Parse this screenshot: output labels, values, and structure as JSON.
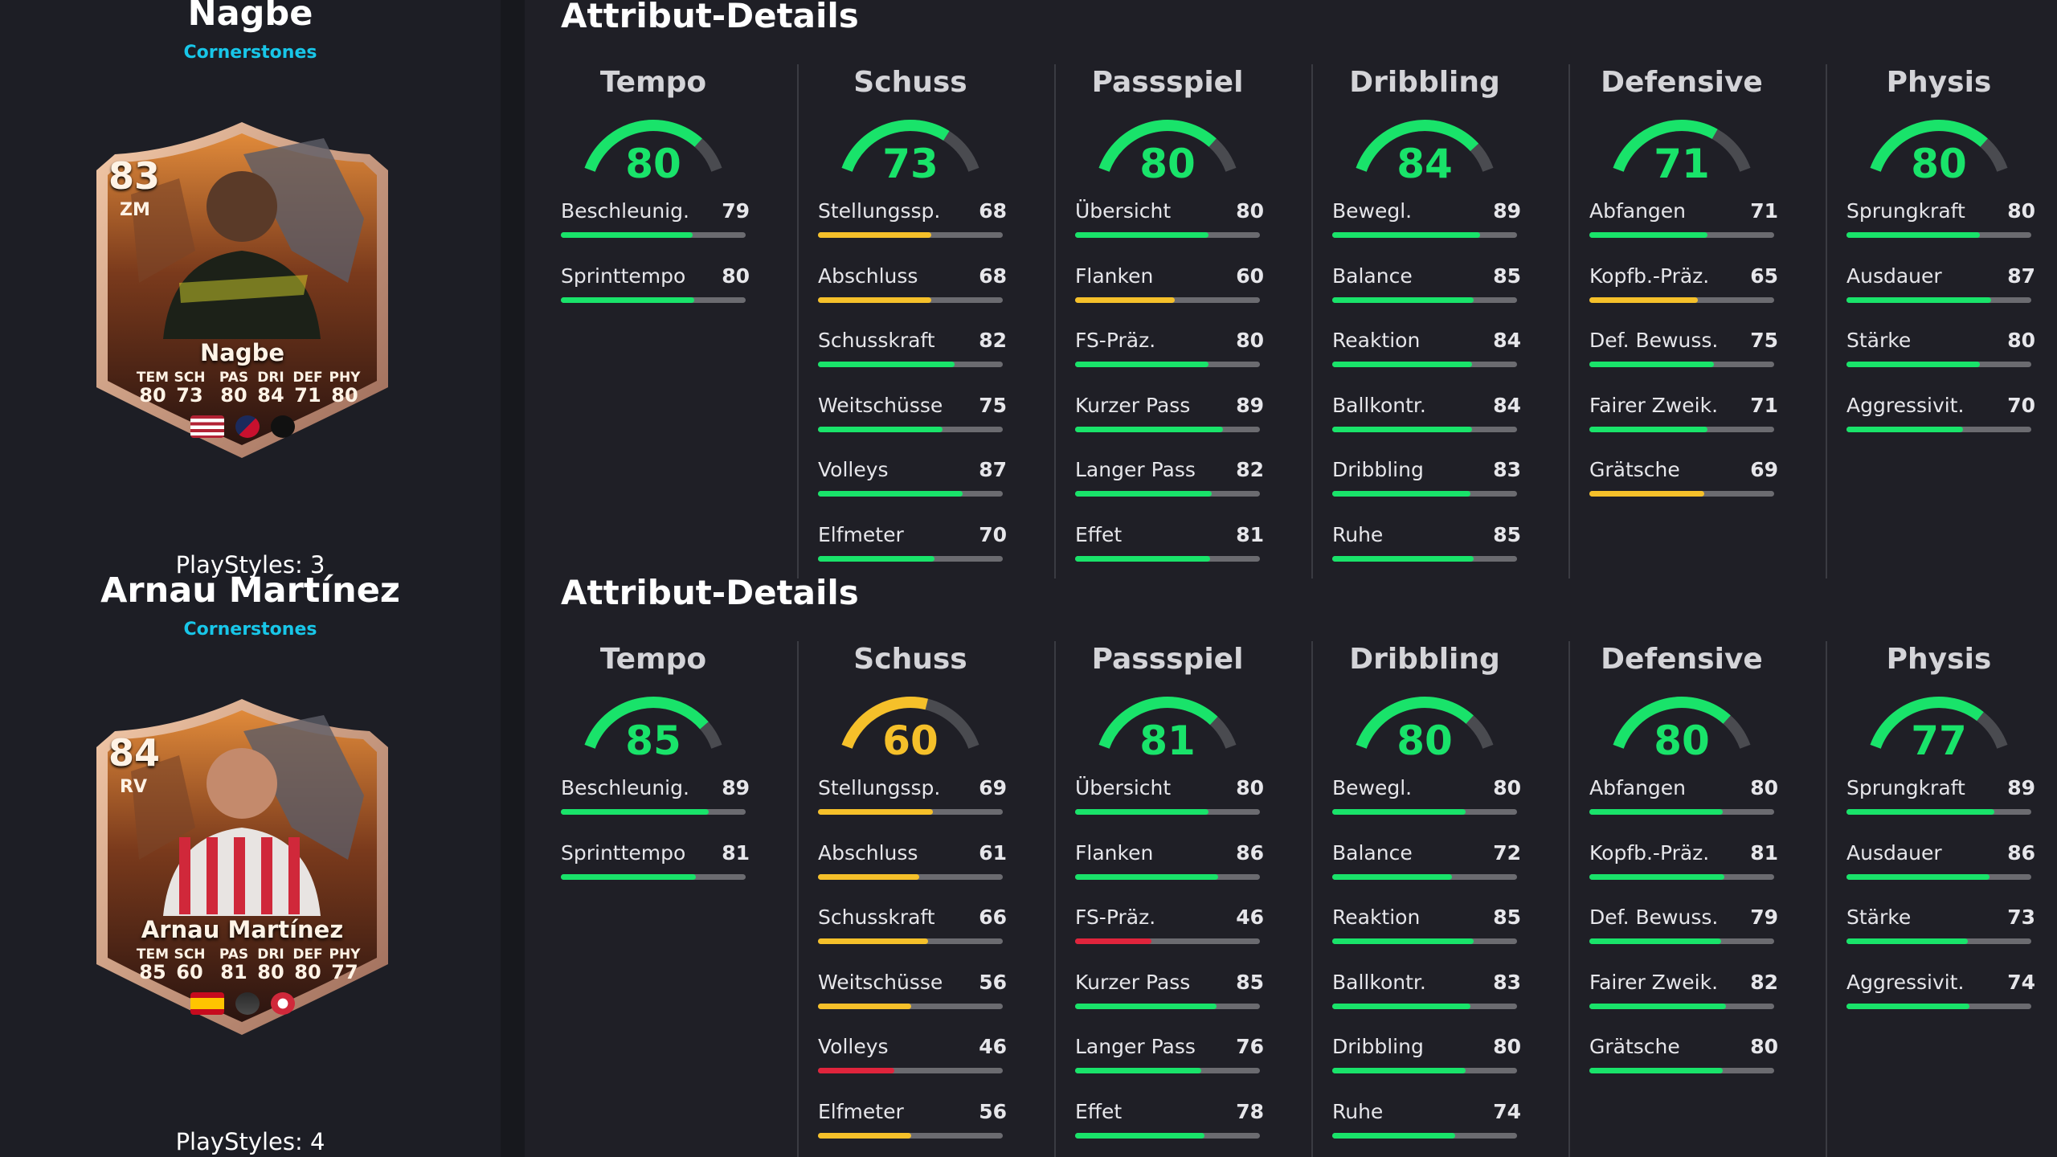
{
  "colors": {
    "green": "#19e36a",
    "yellow": "#f5c02a",
    "red": "#e0243c",
    "track": "#6b6b70",
    "accent": "#18c6e8"
  },
  "players": [
    {
      "name": "Nagbe",
      "team": "Cornerstones",
      "playstyles": "PlayStyles: 3",
      "card": {
        "rating": "83",
        "position": "ZM",
        "name": "Nagbe",
        "stats": [
          {
            "label": "TEM",
            "value": "80"
          },
          {
            "label": "SCH",
            "value": "73"
          },
          {
            "label": "PAS",
            "value": "80"
          },
          {
            "label": "DRI",
            "value": "84"
          },
          {
            "label": "DEF",
            "value": "71"
          },
          {
            "label": "PHY",
            "value": "80"
          }
        ],
        "badges": [
          "usa-flag-icon",
          "mls-logo-icon",
          "columbus-crest-icon"
        ]
      },
      "section_title": "Attribut-Details",
      "categories": [
        {
          "name": "Tempo",
          "value": 80,
          "stats": [
            {
              "label": "Beschleunig.",
              "value": 79
            },
            {
              "label": "Sprinttempo",
              "value": 80
            }
          ]
        },
        {
          "name": "Schuss",
          "value": 73,
          "stats": [
            {
              "label": "Stellungssp.",
              "value": 68
            },
            {
              "label": "Abschluss",
              "value": 68
            },
            {
              "label": "Schusskraft",
              "value": 82
            },
            {
              "label": "Weitschüsse",
              "value": 75
            },
            {
              "label": "Volleys",
              "value": 87
            },
            {
              "label": "Elfmeter",
              "value": 70
            }
          ]
        },
        {
          "name": "Passspiel",
          "value": 80,
          "stats": [
            {
              "label": "Übersicht",
              "value": 80
            },
            {
              "label": "Flanken",
              "value": 60
            },
            {
              "label": "FS-Präz.",
              "value": 80
            },
            {
              "label": "Kurzer Pass",
              "value": 89
            },
            {
              "label": "Langer Pass",
              "value": 82
            },
            {
              "label": "Effet",
              "value": 81
            }
          ]
        },
        {
          "name": "Dribbling",
          "value": 84,
          "stats": [
            {
              "label": "Bewegl.",
              "value": 89
            },
            {
              "label": "Balance",
              "value": 85
            },
            {
              "label": "Reaktion",
              "value": 84
            },
            {
              "label": "Ballkontr.",
              "value": 84
            },
            {
              "label": "Dribbling",
              "value": 83
            },
            {
              "label": "Ruhe",
              "value": 85
            }
          ]
        },
        {
          "name": "Defensive",
          "value": 71,
          "stats": [
            {
              "label": "Abfangen",
              "value": 71
            },
            {
              "label": "Kopfb.-Präz.",
              "value": 65
            },
            {
              "label": "Def. Bewuss.",
              "value": 75
            },
            {
              "label": "Fairer Zweik.",
              "value": 71
            },
            {
              "label": "Grätsche",
              "value": 69
            }
          ]
        },
        {
          "name": "Physis",
          "value": 80,
          "stats": [
            {
              "label": "Sprungkraft",
              "value": 80
            },
            {
              "label": "Ausdauer",
              "value": 87
            },
            {
              "label": "Stärke",
              "value": 80
            },
            {
              "label": "Aggressivit.",
              "value": 70
            }
          ]
        }
      ]
    },
    {
      "name": "Arnau Martínez",
      "team": "Cornerstones",
      "playstyles": "PlayStyles: 4",
      "card": {
        "rating": "84",
        "position": "RV",
        "name": "Arnau Martínez",
        "stats": [
          {
            "label": "TEM",
            "value": "85"
          },
          {
            "label": "SCH",
            "value": "60"
          },
          {
            "label": "PAS",
            "value": "81"
          },
          {
            "label": "DRI",
            "value": "80"
          },
          {
            "label": "DEF",
            "value": "80"
          },
          {
            "label": "PHY",
            "value": "77"
          }
        ],
        "badges": [
          "spain-flag-icon",
          "laliga-logo-icon",
          "girona-crest-icon"
        ]
      },
      "section_title": "Attribut-Details",
      "categories": [
        {
          "name": "Tempo",
          "value": 85,
          "stats": [
            {
              "label": "Beschleunig.",
              "value": 89
            },
            {
              "label": "Sprinttempo",
              "value": 81
            }
          ]
        },
        {
          "name": "Schuss",
          "value": 60,
          "stats": [
            {
              "label": "Stellungssp.",
              "value": 69
            },
            {
              "label": "Abschluss",
              "value": 61
            },
            {
              "label": "Schusskraft",
              "value": 66
            },
            {
              "label": "Weitschüsse",
              "value": 56
            },
            {
              "label": "Volleys",
              "value": 46
            },
            {
              "label": "Elfmeter",
              "value": 56
            }
          ]
        },
        {
          "name": "Passspiel",
          "value": 81,
          "stats": [
            {
              "label": "Übersicht",
              "value": 80
            },
            {
              "label": "Flanken",
              "value": 86
            },
            {
              "label": "FS-Präz.",
              "value": 46
            },
            {
              "label": "Kurzer Pass",
              "value": 85
            },
            {
              "label": "Langer Pass",
              "value": 76
            },
            {
              "label": "Effet",
              "value": 78
            }
          ]
        },
        {
          "name": "Dribbling",
          "value": 80,
          "stats": [
            {
              "label": "Bewegl.",
              "value": 80
            },
            {
              "label": "Balance",
              "value": 72
            },
            {
              "label": "Reaktion",
              "value": 85
            },
            {
              "label": "Ballkontr.",
              "value": 83
            },
            {
              "label": "Dribbling",
              "value": 80
            },
            {
              "label": "Ruhe",
              "value": 74
            }
          ]
        },
        {
          "name": "Defensive",
          "value": 80,
          "stats": [
            {
              "label": "Abfangen",
              "value": 80
            },
            {
              "label": "Kopfb.-Präz.",
              "value": 81
            },
            {
              "label": "Def. Bewuss.",
              "value": 79
            },
            {
              "label": "Fairer Zweik.",
              "value": 82
            },
            {
              "label": "Grätsche",
              "value": 80
            }
          ]
        },
        {
          "name": "Physis",
          "value": 77,
          "stats": [
            {
              "label": "Sprungkraft",
              "value": 89
            },
            {
              "label": "Ausdauer",
              "value": 86
            },
            {
              "label": "Stärke",
              "value": 73
            },
            {
              "label": "Aggressivit.",
              "value": 74
            }
          ]
        }
      ]
    }
  ]
}
